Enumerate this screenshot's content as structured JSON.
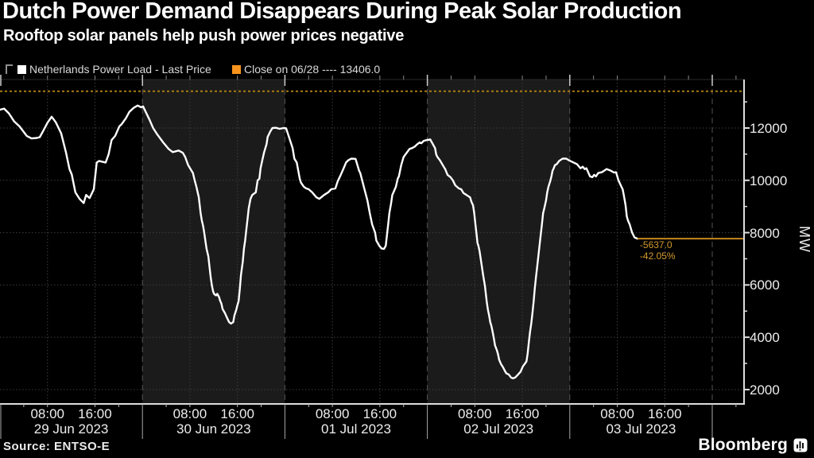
{
  "header": {
    "title": "Dutch Power Demand Disappears During Peak Solar Production",
    "subtitle": "Rooftop solar panels help push power prices negative"
  },
  "legend": {
    "series1": {
      "label": "Netherlands Power Load - Last Price",
      "marker_color": "#ffffff"
    },
    "series2": {
      "label": "Close on 06/28 ---- 13406.0",
      "marker_color": "#f7941d"
    }
  },
  "chart_data": {
    "type": "line",
    "ylabel": "MW",
    "ylim": [
      1451,
      13854
    ],
    "ymajor": [
      2000,
      4000,
      6000,
      8000,
      10000,
      12000
    ],
    "yminor": [
      3000,
      5000,
      7000,
      9000,
      11000,
      13000
    ],
    "days": [
      "29 Jun 2023",
      "30 Jun 2023",
      "01 Jul 2023",
      "02 Jul 2023",
      "03 Jul 2023"
    ],
    "shaded_day_indices": [
      1,
      3
    ],
    "shaded_band_color": "#1b1b1b",
    "hour_ticks": [
      4,
      8,
      16,
      20
    ],
    "time_labels": [
      {
        "hour": 8,
        "label": "08:00"
      },
      {
        "hour": 16,
        "label": "16:00"
      }
    ],
    "x_end_hours": 125.4,
    "grid_color": "#3d3d3d",
    "day_boundary_color": "#555555",
    "axis_color": "#dddddd",
    "close_line": {
      "label": "Close on 06/28",
      "value": 13406,
      "color": "#c8861e",
      "dotted_color": "#a97d10"
    },
    "last_point": {
      "hour": 107.4,
      "value": 7769,
      "delta_label": "-5637.0",
      "pct_label": "-42.05%",
      "label_color": "#d29a2e"
    },
    "series": [
      {
        "name": "Netherlands Power Load - Last Price",
        "color": "#ffffff",
        "unit": "MW",
        "points": [
          [
            0,
            12700
          ],
          [
            0.7,
            12740
          ],
          [
            1.5,
            12560
          ],
          [
            2.4,
            12250
          ],
          [
            3.3,
            12060
          ],
          [
            4.5,
            11700
          ],
          [
            5.3,
            11600
          ],
          [
            6.2,
            11620
          ],
          [
            6.7,
            11650
          ],
          [
            7.3,
            11900
          ],
          [
            8.0,
            12200
          ],
          [
            8.7,
            12430
          ],
          [
            9.4,
            12220
          ],
          [
            10.3,
            11800
          ],
          [
            11.1,
            11080
          ],
          [
            11.7,
            10430
          ],
          [
            12.1,
            10220
          ],
          [
            12.7,
            9540
          ],
          [
            13.4,
            9290
          ],
          [
            14.1,
            9130
          ],
          [
            14.5,
            9440
          ],
          [
            15.1,
            9320
          ],
          [
            15.8,
            9660
          ],
          [
            16.3,
            10680
          ],
          [
            16.7,
            10740
          ],
          [
            17.8,
            10680
          ],
          [
            18.3,
            10990
          ],
          [
            18.8,
            11540
          ],
          [
            19.4,
            11700
          ],
          [
            20.1,
            12060
          ],
          [
            20.5,
            12150
          ],
          [
            21.2,
            12370
          ],
          [
            21.8,
            12620
          ],
          [
            22.5,
            12770
          ],
          [
            23.2,
            12860
          ],
          [
            23.8,
            12790
          ],
          [
            24.1,
            12830
          ],
          [
            25.2,
            12310
          ],
          [
            25.8,
            12000
          ],
          [
            26.5,
            11750
          ],
          [
            27.0,
            11600
          ],
          [
            27.5,
            11450
          ],
          [
            28.4,
            11200
          ],
          [
            29.1,
            11080
          ],
          [
            30.1,
            11140
          ],
          [
            30.8,
            11050
          ],
          [
            31.2,
            10890
          ],
          [
            31.7,
            10580
          ],
          [
            32.1,
            10430
          ],
          [
            32.5,
            10280
          ],
          [
            32.8,
            10000
          ],
          [
            33.1,
            9750
          ],
          [
            33.5,
            9350
          ],
          [
            33.8,
            8740
          ],
          [
            34.0,
            8460
          ],
          [
            34.2,
            8270
          ],
          [
            34.4,
            8000
          ],
          [
            34.6,
            7700
          ],
          [
            34.8,
            7390
          ],
          [
            35.1,
            7090
          ],
          [
            35.3,
            6680
          ],
          [
            35.5,
            6280
          ],
          [
            35.7,
            5970
          ],
          [
            35.9,
            5750
          ],
          [
            36.1,
            5650
          ],
          [
            36.4,
            5600
          ],
          [
            36.6,
            5660
          ],
          [
            36.9,
            5540
          ],
          [
            37.1,
            5390
          ],
          [
            37.3,
            5290
          ],
          [
            37.5,
            5080
          ],
          [
            37.9,
            4920
          ],
          [
            38.2,
            4770
          ],
          [
            38.6,
            4580
          ],
          [
            38.9,
            4520
          ],
          [
            39.3,
            4580
          ],
          [
            39.5,
            4830
          ],
          [
            39.8,
            5050
          ],
          [
            40.0,
            5230
          ],
          [
            40.2,
            5390
          ],
          [
            40.4,
            5850
          ],
          [
            40.6,
            6370
          ],
          [
            40.9,
            6890
          ],
          [
            41.1,
            7390
          ],
          [
            41.3,
            7700
          ],
          [
            41.5,
            8120
          ],
          [
            41.7,
            8520
          ],
          [
            41.9,
            8930
          ],
          [
            42.2,
            9290
          ],
          [
            42.5,
            9440
          ],
          [
            43.1,
            9540
          ],
          [
            43.4,
            10000
          ],
          [
            43.7,
            10060
          ],
          [
            43.9,
            10460
          ],
          [
            44.2,
            10770
          ],
          [
            44.5,
            11080
          ],
          [
            44.9,
            11380
          ],
          [
            45.1,
            11660
          ],
          [
            45.3,
            11750
          ],
          [
            45.5,
            11850
          ],
          [
            45.9,
            12000
          ],
          [
            46.5,
            12010
          ],
          [
            47.1,
            11970
          ],
          [
            47.8,
            12000
          ],
          [
            48.2,
            11990
          ],
          [
            49.3,
            11230
          ],
          [
            49.6,
            10830
          ],
          [
            50.0,
            10680
          ],
          [
            50.5,
            10060
          ],
          [
            50.7,
            9910
          ],
          [
            51.2,
            9750
          ],
          [
            51.6,
            9690
          ],
          [
            52.0,
            9660
          ],
          [
            52.6,
            9540
          ],
          [
            53.3,
            9350
          ],
          [
            53.8,
            9290
          ],
          [
            54.6,
            9440
          ],
          [
            55.3,
            9540
          ],
          [
            55.8,
            9660
          ],
          [
            56.5,
            9690
          ],
          [
            56.9,
            9970
          ],
          [
            57.3,
            10150
          ],
          [
            57.9,
            10460
          ],
          [
            58.3,
            10680
          ],
          [
            58.7,
            10770
          ],
          [
            59.2,
            10830
          ],
          [
            59.9,
            10820
          ],
          [
            60.5,
            10370
          ],
          [
            60.7,
            10280
          ],
          [
            61.3,
            9750
          ],
          [
            61.9,
            9230
          ],
          [
            62.3,
            8740
          ],
          [
            62.7,
            8310
          ],
          [
            63.2,
            8000
          ],
          [
            63.4,
            7700
          ],
          [
            63.9,
            7500
          ],
          [
            64.3,
            7390
          ],
          [
            64.7,
            7380
          ],
          [
            65.0,
            7500
          ],
          [
            65.2,
            7910
          ],
          [
            65.4,
            8310
          ],
          [
            65.6,
            8740
          ],
          [
            65.9,
            9140
          ],
          [
            66.1,
            9440
          ],
          [
            66.3,
            9540
          ],
          [
            66.7,
            9750
          ],
          [
            67.0,
            10060
          ],
          [
            67.2,
            10150
          ],
          [
            67.6,
            10580
          ],
          [
            68.0,
            10890
          ],
          [
            68.6,
            11080
          ],
          [
            69.0,
            11200
          ],
          [
            69.4,
            11230
          ],
          [
            69.9,
            11290
          ],
          [
            70.3,
            11380
          ],
          [
            70.7,
            11450
          ],
          [
            71.0,
            11420
          ],
          [
            71.4,
            11510
          ],
          [
            71.9,
            11540
          ],
          [
            72.5,
            11560
          ],
          [
            73.3,
            11230
          ],
          [
            73.5,
            10980
          ],
          [
            73.7,
            10890
          ],
          [
            74.1,
            10770
          ],
          [
            74.6,
            10580
          ],
          [
            75.0,
            10430
          ],
          [
            75.4,
            10210
          ],
          [
            75.9,
            10120
          ],
          [
            76.3,
            10000
          ],
          [
            76.7,
            9810
          ],
          [
            77.3,
            9690
          ],
          [
            77.7,
            9660
          ],
          [
            78.1,
            9510
          ],
          [
            78.6,
            9440
          ],
          [
            79.2,
            9350
          ],
          [
            79.4,
            9190
          ],
          [
            79.7,
            9040
          ],
          [
            79.9,
            8740
          ],
          [
            80.1,
            8310
          ],
          [
            80.3,
            7910
          ],
          [
            80.45,
            7600
          ],
          [
            80.6,
            7500
          ],
          [
            80.8,
            7290
          ],
          [
            81.0,
            6980
          ],
          [
            81.2,
            6680
          ],
          [
            81.4,
            6370
          ],
          [
            81.7,
            5970
          ],
          [
            82.0,
            5360
          ],
          [
            82.2,
            5050
          ],
          [
            82.4,
            4830
          ],
          [
            82.6,
            4580
          ],
          [
            82.8,
            4430
          ],
          [
            83.0,
            4210
          ],
          [
            83.2,
            3970
          ],
          [
            83.4,
            3690
          ],
          [
            83.7,
            3510
          ],
          [
            83.9,
            3350
          ],
          [
            84.1,
            3140
          ],
          [
            84.4,
            2980
          ],
          [
            84.8,
            2830
          ],
          [
            85.0,
            2740
          ],
          [
            85.3,
            2620
          ],
          [
            85.7,
            2580
          ],
          [
            86.1,
            2460
          ],
          [
            86.4,
            2430
          ],
          [
            86.8,
            2460
          ],
          [
            87.3,
            2580
          ],
          [
            87.7,
            2680
          ],
          [
            88.1,
            2890
          ],
          [
            88.4,
            2980
          ],
          [
            88.7,
            3080
          ],
          [
            88.9,
            3380
          ],
          [
            89.1,
            3820
          ],
          [
            89.3,
            4210
          ],
          [
            89.5,
            4520
          ],
          [
            89.7,
            4920
          ],
          [
            89.9,
            5360
          ],
          [
            90.1,
            5850
          ],
          [
            90.3,
            6280
          ],
          [
            90.5,
            6680
          ],
          [
            90.7,
            7090
          ],
          [
            90.9,
            7500
          ],
          [
            91.1,
            7910
          ],
          [
            91.3,
            8310
          ],
          [
            91.5,
            8740
          ],
          [
            91.7,
            8930
          ],
          [
            92.0,
            9230
          ],
          [
            92.2,
            9540
          ],
          [
            92.4,
            9750
          ],
          [
            92.7,
            9970
          ],
          [
            92.9,
            10150
          ],
          [
            93.1,
            10370
          ],
          [
            93.3,
            10460
          ],
          [
            93.5,
            10580
          ],
          [
            93.8,
            10620
          ],
          [
            94.0,
            10680
          ],
          [
            94.2,
            10740
          ],
          [
            94.4,
            10770
          ],
          [
            94.8,
            10830
          ],
          [
            95.4,
            10830
          ],
          [
            95.8,
            10770
          ],
          [
            97.2,
            10620
          ],
          [
            97.8,
            10460
          ],
          [
            98.2,
            10520
          ],
          [
            98.5,
            10430
          ],
          [
            98.8,
            10460
          ],
          [
            99.4,
            10150
          ],
          [
            99.8,
            10120
          ],
          [
            100.1,
            10210
          ],
          [
            100.4,
            10150
          ],
          [
            100.8,
            10280
          ],
          [
            101.4,
            10310
          ],
          [
            101.8,
            10370
          ],
          [
            102.2,
            10430
          ],
          [
            102.9,
            10370
          ],
          [
            103.4,
            10300
          ],
          [
            103.8,
            10310
          ],
          [
            104.2,
            10000
          ],
          [
            104.5,
            9850
          ],
          [
            104.7,
            9750
          ],
          [
            104.9,
            9660
          ],
          [
            105.1,
            9440
          ],
          [
            105.4,
            9040
          ],
          [
            105.6,
            8620
          ],
          [
            105.8,
            8460
          ],
          [
            106.1,
            8310
          ],
          [
            106.3,
            8150
          ],
          [
            106.5,
            8000
          ],
          [
            106.7,
            7910
          ],
          [
            106.9,
            7820
          ],
          [
            107.4,
            7769
          ]
        ]
      }
    ]
  },
  "footer": {
    "source": "Source: ENTSO-E",
    "brand": "Bloomberg"
  }
}
